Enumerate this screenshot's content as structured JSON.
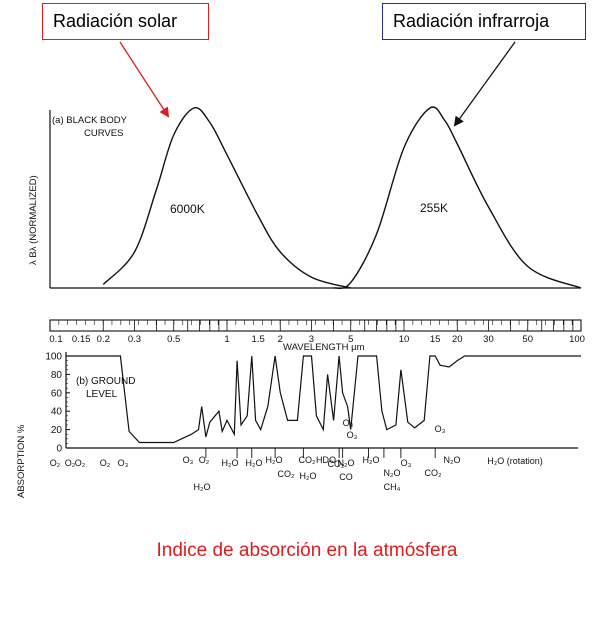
{
  "callouts": {
    "solar": "Radiación solar",
    "infrared": "Radiación infrarroja"
  },
  "caption": "Indice de absorción en la atmósfera",
  "panel_a": {
    "title_line1": "(a) BLACK BODY",
    "title_line2": "CURVES",
    "ylabel": "λ Bλ (NORMALIZED)",
    "curve_labels": [
      "6000K",
      "255K"
    ]
  },
  "wavelength_axis": {
    "label": "WAVELENGTH µm",
    "tick_labels": [
      "0.1",
      "0.15",
      "0.2",
      "0.3",
      "0.5",
      "1",
      "1.5",
      "2",
      "3",
      "5",
      "10",
      "15",
      "20",
      "30",
      "50",
      "100"
    ]
  },
  "panel_b": {
    "title_line1": "(b) GROUND",
    "title_line2": "LEVEL",
    "ylabel": "ABSORPTION %",
    "y_tick_labels": [
      "100",
      "80",
      "60",
      "40",
      "20",
      "0"
    ],
    "gas_labels": [
      "O₂",
      "O₂",
      "O₂",
      "O₂",
      "O₃",
      "O₃",
      "O₂",
      "H₂O",
      "H₂O",
      "H₂O",
      "H₂O",
      "CO₂",
      "CO₂",
      "H₂O",
      "HDO",
      "N₂O",
      "CO",
      "CO₂",
      "O₃",
      "O₃",
      "H₂O",
      "N₂O",
      "CH₄",
      "O₃",
      "CO₂",
      "O₃",
      "N₂O",
      "H₂O (rotation)"
    ]
  },
  "chart_data": [
    {
      "type": "line",
      "title": "(a) BLACK BODY CURVES",
      "xlabel": "WAVELENGTH µm",
      "ylabel": "λ Bλ (NORMALIZED)",
      "x_scale": "log",
      "xlim": [
        0.1,
        100
      ],
      "series": [
        {
          "name": "6000K",
          "x": [
            0.2,
            0.3,
            0.4,
            0.5,
            0.65,
            0.8,
            1.0,
            1.5,
            2,
            3,
            5
          ],
          "y": [
            0.02,
            0.2,
            0.55,
            0.85,
            1.0,
            0.92,
            0.74,
            0.4,
            0.2,
            0.06,
            0.0
          ]
        },
        {
          "name": "255K",
          "x": [
            4,
            5,
            7,
            10,
            14,
            17,
            20,
            30,
            50,
            100
          ],
          "y": [
            0.0,
            0.03,
            0.3,
            0.78,
            1.0,
            0.93,
            0.8,
            0.45,
            0.12,
            0.0
          ]
        }
      ]
    },
    {
      "type": "line",
      "title": "(b) GROUND LEVEL",
      "xlabel": "WAVELENGTH µm",
      "ylabel": "ABSORPTION %",
      "x_scale": "log",
      "xlim": [
        0.1,
        100
      ],
      "ylim": [
        0,
        100
      ],
      "series": [
        {
          "x": [
            0.1,
            0.25,
            0.28,
            0.32,
            0.5,
            0.63,
            0.69,
            0.72,
            0.76,
            0.8,
            0.9,
            0.94,
            1.0,
            1.1,
            1.14,
            1.2,
            1.3,
            1.38,
            1.45,
            1.55,
            1.7,
            1.87,
            2.0,
            2.2,
            2.5,
            2.7,
            3.0,
            3.2,
            3.5,
            3.7,
            4.0,
            4.3,
            4.5,
            4.8,
            5.0,
            5.5,
            6.3,
            7.0,
            7.5,
            8.0,
            9.0,
            9.6,
            10.5,
            11.5,
            13.0,
            14.0,
            15.0,
            16.0,
            18.0,
            20.0,
            22.0,
            25.0,
            30.0,
            100.0
          ],
          "y": [
            100,
            100,
            18,
            6,
            6,
            15,
            20,
            45,
            12,
            28,
            40,
            18,
            30,
            15,
            95,
            25,
            35,
            100,
            30,
            20,
            45,
            100,
            60,
            30,
            30,
            100,
            100,
            35,
            20,
            80,
            30,
            100,
            60,
            45,
            20,
            100,
            100,
            100,
            40,
            20,
            25,
            85,
            28,
            22,
            30,
            100,
            100,
            90,
            88,
            95,
            100,
            100,
            100,
            100
          ]
        }
      ]
    }
  ]
}
